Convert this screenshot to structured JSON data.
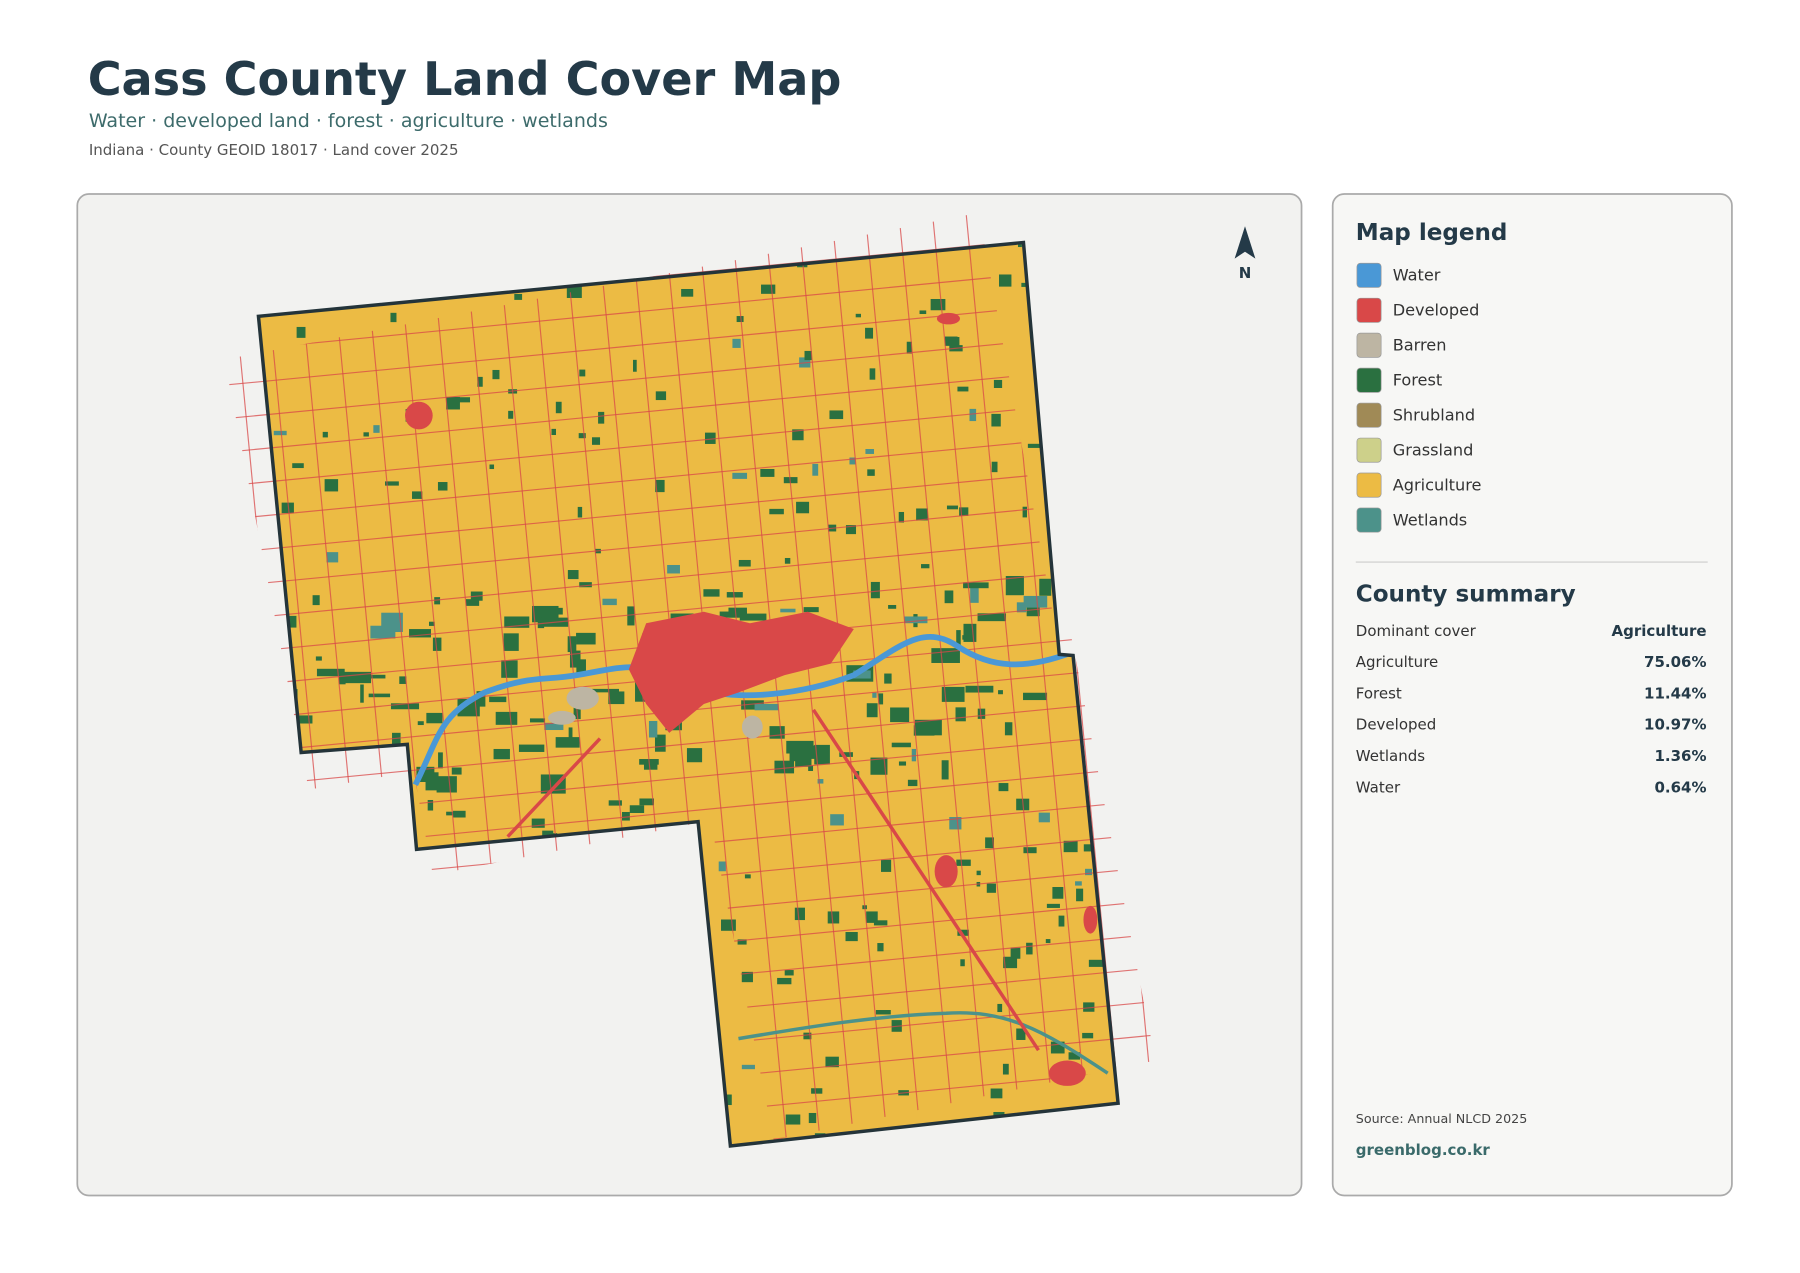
{
  "header": {
    "title": "Cass County Land Cover Map",
    "subtitle": "Water · developed land · forest · agriculture · wetlands",
    "meta": "Indiana · County GEOID 18017 · Land cover 2025"
  },
  "map": {
    "north_label": "N"
  },
  "legend": {
    "title": "Map legend",
    "items": [
      {
        "label": "Water",
        "color": "#4a98d6"
      },
      {
        "label": "Developed",
        "color": "#d94848"
      },
      {
        "label": "Barren",
        "color": "#bdb5a3"
      },
      {
        "label": "Forest",
        "color": "#2a7040"
      },
      {
        "label": "Shrubland",
        "color": "#a08a56"
      },
      {
        "label": "Grassland",
        "color": "#cdd08a"
      },
      {
        "label": "Agriculture",
        "color": "#ecbb44"
      },
      {
        "label": "Wetlands",
        "color": "#4c928a"
      }
    ]
  },
  "summary": {
    "title": "County summary",
    "rows": [
      [
        "Dominant cover",
        "Agriculture"
      ],
      [
        "Agriculture",
        "75.06%"
      ],
      [
        "Forest",
        "11.44%"
      ],
      [
        "Developed",
        "10.97%"
      ],
      [
        "Wetlands",
        "1.36%"
      ],
      [
        "Water",
        "0.64%"
      ]
    ]
  },
  "footer": {
    "source": "Source: Annual NLCD 2025",
    "site": "greenblog.co.kr"
  }
}
